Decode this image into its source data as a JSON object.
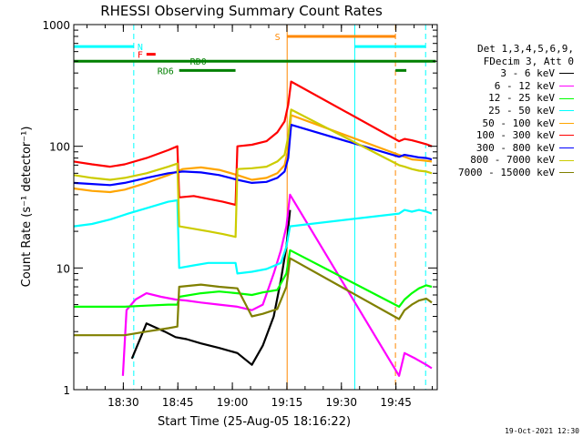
{
  "chart_data": {
    "type": "line",
    "title": "RHESSI Observing Summary Count Rates",
    "xlabel": "Start Time (25-Aug-05 18:16:22)",
    "ylabel": "Count Rate (s⁻¹ detector⁻¹)",
    "x_units": "minutes after 18:16:22",
    "xlim": [
      0,
      100
    ],
    "ylim": [
      1,
      1000
    ],
    "yscale": "log",
    "x_ticks": [
      {
        "value": 13.63,
        "label": "18:30"
      },
      {
        "value": 28.63,
        "label": "18:45"
      },
      {
        "value": 43.63,
        "label": "19:00"
      },
      {
        "value": 58.63,
        "label": "19:15"
      },
      {
        "value": 73.63,
        "label": "19:30"
      },
      {
        "value": 88.63,
        "label": "19:45"
      }
    ],
    "y_ticks": [
      {
        "value": 1,
        "label": "1"
      },
      {
        "value": 10,
        "label": "10"
      },
      {
        "value": 100,
        "label": "100"
      },
      {
        "value": 1000,
        "label": "1000"
      }
    ],
    "legend_header": [
      "Det 1,3,4,5,6,9,",
      "FDecim 3, Att 0"
    ],
    "series": [
      {
        "name": "3 - 6 keV",
        "color": "#000000",
        "x": [
          0,
          14,
          16,
          20,
          25,
          28,
          31,
          35,
          40,
          45,
          49,
          52,
          55,
          57,
          58.5,
          59.5
        ],
        "y": [
          null,
          null,
          1.8,
          3.5,
          3.0,
          2.7,
          2.6,
          2.4,
          2.2,
          2.0,
          1.6,
          2.3,
          4.0,
          8.0,
          15.0,
          30.0
        ]
      },
      {
        "name": "6 - 12 keV",
        "color": "#ff00ff",
        "x": [
          13.5,
          14.5,
          17,
          20,
          24,
          28,
          31,
          35,
          40,
          45,
          49,
          52,
          55,
          57,
          58.5,
          59.5,
          89.5,
          91,
          94,
          97,
          98.5
        ],
        "y": [
          1.3,
          4.5,
          5.5,
          6.2,
          5.8,
          5.5,
          5.4,
          5.2,
          5.0,
          4.8,
          4.5,
          5.0,
          9.0,
          14.0,
          22.0,
          40.0,
          1.3,
          2.0,
          1.8,
          1.6,
          1.5
        ]
      },
      {
        "name": "12 - 25 keV",
        "color": "#00ff00",
        "x": [
          0,
          14,
          20,
          26,
          28.5,
          29,
          35,
          40,
          45,
          49,
          52,
          56,
          58.5,
          59.5,
          89.5,
          91,
          93,
          95,
          97,
          98.5
        ],
        "y": [
          4.8,
          4.8,
          4.9,
          5.0,
          5.0,
          5.8,
          6.2,
          6.4,
          6.2,
          6.0,
          6.3,
          6.6,
          9.0,
          14.0,
          4.8,
          5.5,
          6.2,
          6.8,
          7.2,
          7.0
        ]
      },
      {
        "name": "25 - 50 keV",
        "color": "#00ffff",
        "x": [
          0,
          5,
          10,
          15,
          20,
          26,
          28.5,
          29,
          33,
          37,
          41,
          44.5,
          45,
          49,
          53,
          57,
          58.5,
          59.5,
          89.5,
          91,
          93,
          95,
          97,
          98.5
        ],
        "y": [
          22.0,
          23.0,
          25.0,
          28.0,
          31.0,
          35.0,
          36.0,
          10.0,
          10.5,
          11.0,
          11.0,
          11.0,
          9.0,
          9.3,
          9.8,
          11.0,
          15.0,
          22.0,
          28.0,
          30.0,
          29.0,
          30.0,
          29.0,
          28.0
        ]
      },
      {
        "name": "50 - 100 keV",
        "color": "#ffa500",
        "x": [
          0,
          5,
          10,
          14,
          20,
          26,
          30,
          35,
          40,
          45,
          49,
          53,
          56,
          58,
          59,
          59.8,
          89.5,
          91,
          93,
          95,
          97,
          98.5
        ],
        "y": [
          45.0,
          43.0,
          42.0,
          44.0,
          50.0,
          58.0,
          65.0,
          67.0,
          64.0,
          58.0,
          53.0,
          55.0,
          60.0,
          70.0,
          95.0,
          180.0,
          85.0,
          82.0,
          78.0,
          77.0,
          76.0,
          75.0
        ]
      },
      {
        "name": "100 - 300 keV",
        "color": "#ff0000",
        "x": [
          0,
          5,
          10,
          14,
          20,
          26,
          28.5,
          29,
          33,
          37,
          41,
          44.5,
          45,
          49,
          53,
          56,
          58,
          59,
          59.8,
          89.5,
          91,
          93,
          95,
          97,
          98.5
        ],
        "y": [
          75.0,
          71.0,
          68.0,
          71.0,
          80.0,
          93.0,
          100.0,
          38.0,
          39.0,
          37.0,
          35.0,
          33.0,
          100.0,
          103.0,
          110.0,
          130.0,
          160.0,
          220.0,
          340.0,
          110.0,
          115.0,
          112.0,
          108.0,
          104.0,
          100.0
        ]
      },
      {
        "name": "300 - 800 keV",
        "color": "#0000ff",
        "x": [
          0,
          5,
          10,
          14,
          20,
          26,
          30,
          35,
          40,
          45,
          49,
          53,
          56,
          58,
          59,
          59.8,
          89.5,
          91,
          93,
          95,
          97,
          98.5
        ],
        "y": [
          50.0,
          49.0,
          48.0,
          50.0,
          55.0,
          60.0,
          62.0,
          61.0,
          58.0,
          53.0,
          50.0,
          51.0,
          55.0,
          62.0,
          80.0,
          150.0,
          82.0,
          85.0,
          83.0,
          81.0,
          80.0,
          78.0
        ]
      },
      {
        "name": "800 - 7000 keV",
        "color": "#cccc00",
        "x": [
          0,
          5,
          10,
          14,
          20,
          26,
          28.5,
          29,
          33,
          37,
          41,
          44.5,
          45,
          49,
          53,
          56,
          58,
          59,
          59.8,
          89.5,
          91,
          93,
          95,
          97,
          98.5
        ],
        "y": [
          58.0,
          55.0,
          53.0,
          55.0,
          60.0,
          68.0,
          72.0,
          22.0,
          21.0,
          20.0,
          19.0,
          18.0,
          65.0,
          66.0,
          68.0,
          75.0,
          85.0,
          120.0,
          200.0,
          70.0,
          68.0,
          65.0,
          63.0,
          62.0,
          60.0
        ]
      },
      {
        "name": "7000 - 15000 keV",
        "color": "#808000",
        "x": [
          0,
          14,
          20,
          26,
          28.5,
          29,
          35,
          40,
          45,
          49,
          52,
          56,
          58.5,
          59.5,
          89.5,
          91,
          93,
          95,
          97,
          98.5
        ],
        "y": [
          2.8,
          2.8,
          3.0,
          3.2,
          3.3,
          7.0,
          7.3,
          7.0,
          6.8,
          4.0,
          4.2,
          4.6,
          7.0,
          12.0,
          3.8,
          4.5,
          5.0,
          5.4,
          5.6,
          5.2
        ]
      }
    ],
    "vertical_markers": [
      {
        "x": 0,
        "color": "#00ffff",
        "style": "solid"
      },
      {
        "x": 16.5,
        "color": "#00ffff",
        "style": "dashed"
      },
      {
        "x": 58.7,
        "color": "#ff8800",
        "style": "solid"
      },
      {
        "x": 77.3,
        "color": "#00ffff",
        "style": "solid"
      },
      {
        "x": 88.5,
        "color": "#ff8800",
        "style": "dashed"
      },
      {
        "x": 96.8,
        "color": "#00ffff",
        "style": "dashed"
      }
    ],
    "state_bars": [
      {
        "label": "N",
        "color": "#00ffff",
        "y": 660,
        "segments": [
          [
            0,
            16.5
          ],
          [
            77.3,
            96.8
          ]
        ],
        "label_x": 17.5
      },
      {
        "label": "F",
        "color": "#ff0000",
        "y": 570,
        "segments": [
          [
            20.0,
            22.5
          ]
        ],
        "label_x": 17.5
      },
      {
        "label": "S",
        "color": "#ff8800",
        "y": 800,
        "segments": [
          [
            58.7,
            88.5
          ]
        ],
        "label_x": 55.3
      },
      {
        "label": "RD0",
        "color": "#008000",
        "y": 500,
        "segments": [
          [
            0,
            99.6
          ]
        ],
        "label_x": 32.0
      },
      {
        "label": "RD6",
        "color": "#008000",
        "y": 420,
        "segments": [
          [
            29.0,
            44.5
          ],
          [
            88.5,
            91.5
          ]
        ],
        "label_x": 23.0
      }
    ],
    "legend_position": "right"
  },
  "footer": {
    "date_stamp": "19-Oct-2021 12:30"
  }
}
